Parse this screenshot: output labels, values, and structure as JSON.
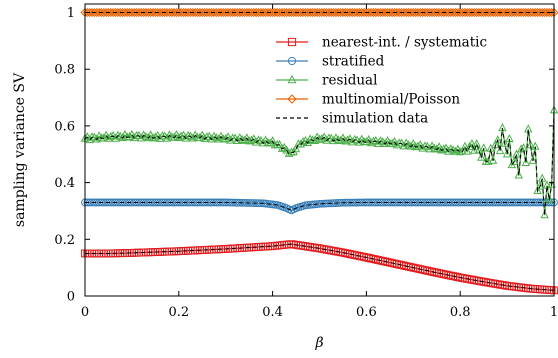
{
  "chart_data": {
    "type": "line",
    "title": "",
    "xlabel": "β",
    "ylabel": "sampling variance SV",
    "xlim": [
      0,
      1
    ],
    "ylim": [
      0,
      1.03
    ],
    "xticks": [
      0,
      0.2,
      0.4,
      0.6,
      0.8,
      1
    ],
    "xtick_labels": [
      "0",
      "0.2",
      "0.4",
      "0.6",
      "0.8",
      "1"
    ],
    "yticks": [
      0,
      0.2,
      0.4,
      0.6,
      0.8,
      1
    ],
    "ytick_labels": [
      "0",
      "0.2",
      "0.4",
      "0.6",
      "0.8",
      "1"
    ],
    "grid": false,
    "legend_position": "top-right",
    "series": [
      {
        "name": "nearest-int. / systematic",
        "color": "#e41a1c",
        "marker": "square",
        "x": [
          0,
          0.05,
          0.1,
          0.15,
          0.2,
          0.25,
          0.3,
          0.35,
          0.4,
          0.44,
          0.5,
          0.55,
          0.6,
          0.65,
          0.7,
          0.75,
          0.8,
          0.85,
          0.9,
          0.95,
          1.0
        ],
        "y": [
          0.15,
          0.15,
          0.152,
          0.155,
          0.158,
          0.162,
          0.166,
          0.171,
          0.176,
          0.183,
          0.168,
          0.153,
          0.136,
          0.118,
          0.1,
          0.082,
          0.065,
          0.05,
          0.036,
          0.026,
          0.02
        ]
      },
      {
        "name": "stratified",
        "color": "#377eb8",
        "marker": "circle",
        "x": [
          0,
          0.1,
          0.2,
          0.3,
          0.38,
          0.41,
          0.43,
          0.44,
          0.45,
          0.47,
          0.5,
          0.55,
          0.6,
          0.7,
          0.8,
          0.9,
          1.0
        ],
        "y": [
          0.33,
          0.33,
          0.33,
          0.33,
          0.327,
          0.321,
          0.31,
          0.302,
          0.31,
          0.32,
          0.325,
          0.329,
          0.33,
          0.33,
          0.33,
          0.33,
          0.33
        ]
      },
      {
        "name": "residual",
        "color": "#4daf4a",
        "marker": "triangle",
        "x": [
          0,
          0.05,
          0.1,
          0.15,
          0.2,
          0.25,
          0.3,
          0.35,
          0.4,
          0.42,
          0.44,
          0.46,
          0.5,
          0.55,
          0.6,
          0.65,
          0.7,
          0.75,
          0.8,
          0.83,
          0.86,
          0.89,
          0.92,
          0.95,
          0.97,
          0.99,
          1.0
        ],
        "y": [
          0.555,
          0.56,
          0.563,
          0.56,
          0.562,
          0.56,
          0.555,
          0.55,
          0.54,
          0.525,
          0.5,
          0.54,
          0.555,
          0.55,
          0.545,
          0.54,
          0.53,
          0.52,
          0.51,
          0.53,
          0.48,
          0.56,
          0.46,
          0.55,
          0.38,
          0.33,
          0.58
        ]
      },
      {
        "name": "multinomial/Poisson",
        "color": "#e66101",
        "marker": "diamond",
        "x": [
          0,
          0.1,
          0.2,
          0.3,
          0.4,
          0.5,
          0.6,
          0.7,
          0.8,
          0.9,
          1.0
        ],
        "y": [
          1,
          1,
          1,
          1,
          1,
          1,
          1,
          1,
          1,
          1,
          1
        ]
      },
      {
        "name": "simulation data",
        "color": "#000000",
        "marker": "none",
        "dashed": true
      }
    ]
  }
}
